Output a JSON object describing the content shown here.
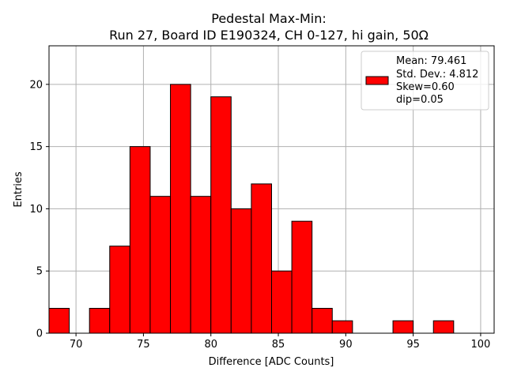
{
  "chart_data": {
    "type": "bar",
    "title_line1": "Pedestal Max-Min:",
    "title_line2": "Run 27, Board ID E190324, CH 0-127, hi gain, 50Ω",
    "xlabel": "Difference [ADC Counts]",
    "ylabel": "Entries",
    "xlim": [
      68,
      101
    ],
    "ylim": [
      0,
      23.1
    ],
    "xticks": [
      "70",
      "75",
      "80",
      "85",
      "90",
      "95",
      "100"
    ],
    "yticks": [
      "0",
      "5",
      "10",
      "15",
      "20"
    ],
    "grid": true,
    "legend_placement": "top-right",
    "bar_color": "#ff0000",
    "bins": [
      {
        "x0": 68.0,
        "x1": 69.5,
        "value": 2
      },
      {
        "x0": 69.5,
        "x1": 71.0,
        "value": 0
      },
      {
        "x0": 71.0,
        "x1": 72.5,
        "value": 2
      },
      {
        "x0": 72.5,
        "x1": 74.0,
        "value": 7
      },
      {
        "x0": 74.0,
        "x1": 75.5,
        "value": 15
      },
      {
        "x0": 75.5,
        "x1": 77.0,
        "value": 11
      },
      {
        "x0": 77.0,
        "x1": 78.5,
        "value": 20
      },
      {
        "x0": 78.5,
        "x1": 80.0,
        "value": 11
      },
      {
        "x0": 80.0,
        "x1": 81.5,
        "value": 19
      },
      {
        "x0": 81.5,
        "x1": 83.0,
        "value": 10
      },
      {
        "x0": 83.0,
        "x1": 84.5,
        "value": 12
      },
      {
        "x0": 84.5,
        "x1": 86.0,
        "value": 5
      },
      {
        "x0": 86.0,
        "x1": 87.5,
        "value": 9
      },
      {
        "x0": 87.5,
        "x1": 89.0,
        "value": 2
      },
      {
        "x0": 89.0,
        "x1": 90.5,
        "value": 1
      },
      {
        "x0": 90.5,
        "x1": 92.0,
        "value": 0
      },
      {
        "x0": 92.0,
        "x1": 93.5,
        "value": 0
      },
      {
        "x0": 93.5,
        "x1": 95.0,
        "value": 1
      },
      {
        "x0": 95.0,
        "x1": 96.5,
        "value": 0
      },
      {
        "x0": 96.5,
        "x1": 98.0,
        "value": 1
      },
      {
        "x0": 98.0,
        "x1": 99.5,
        "value": 0
      },
      {
        "x0": 99.5,
        "x1": 101.0,
        "value": 0
      }
    ],
    "legend_lines": [
      "Mean: 79.461",
      "Std. Dev.: 4.812",
      "Skew=0.60",
      "dip=0.05"
    ]
  }
}
